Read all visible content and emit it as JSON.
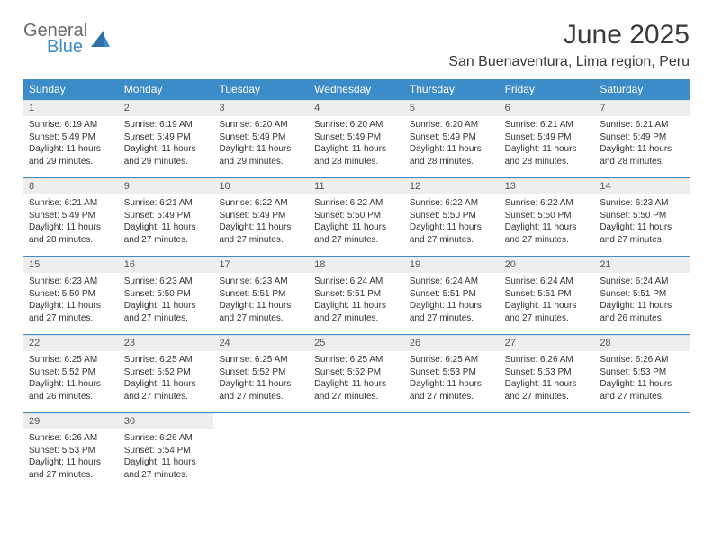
{
  "brand": {
    "part1": "General",
    "part2": "Blue"
  },
  "title": "June 2025",
  "location": "San Buenaventura, Lima region, Peru",
  "colors": {
    "header_bg": "#3c8cc9",
    "header_text": "#ffffff",
    "daynum_bg": "#eeeeee",
    "rule": "#3c8cc9",
    "text": "#333333"
  },
  "days_of_week": [
    "Sunday",
    "Monday",
    "Tuesday",
    "Wednesday",
    "Thursday",
    "Friday",
    "Saturday"
  ],
  "weeks": [
    [
      {
        "n": "1",
        "sr": "Sunrise: 6:19 AM",
        "ss": "Sunset: 5:49 PM",
        "d1": "Daylight: 11 hours",
        "d2": "and 29 minutes."
      },
      {
        "n": "2",
        "sr": "Sunrise: 6:19 AM",
        "ss": "Sunset: 5:49 PM",
        "d1": "Daylight: 11 hours",
        "d2": "and 29 minutes."
      },
      {
        "n": "3",
        "sr": "Sunrise: 6:20 AM",
        "ss": "Sunset: 5:49 PM",
        "d1": "Daylight: 11 hours",
        "d2": "and 29 minutes."
      },
      {
        "n": "4",
        "sr": "Sunrise: 6:20 AM",
        "ss": "Sunset: 5:49 PM",
        "d1": "Daylight: 11 hours",
        "d2": "and 28 minutes."
      },
      {
        "n": "5",
        "sr": "Sunrise: 6:20 AM",
        "ss": "Sunset: 5:49 PM",
        "d1": "Daylight: 11 hours",
        "d2": "and 28 minutes."
      },
      {
        "n": "6",
        "sr": "Sunrise: 6:21 AM",
        "ss": "Sunset: 5:49 PM",
        "d1": "Daylight: 11 hours",
        "d2": "and 28 minutes."
      },
      {
        "n": "7",
        "sr": "Sunrise: 6:21 AM",
        "ss": "Sunset: 5:49 PM",
        "d1": "Daylight: 11 hours",
        "d2": "and 28 minutes."
      }
    ],
    [
      {
        "n": "8",
        "sr": "Sunrise: 6:21 AM",
        "ss": "Sunset: 5:49 PM",
        "d1": "Daylight: 11 hours",
        "d2": "and 28 minutes."
      },
      {
        "n": "9",
        "sr": "Sunrise: 6:21 AM",
        "ss": "Sunset: 5:49 PM",
        "d1": "Daylight: 11 hours",
        "d2": "and 27 minutes."
      },
      {
        "n": "10",
        "sr": "Sunrise: 6:22 AM",
        "ss": "Sunset: 5:49 PM",
        "d1": "Daylight: 11 hours",
        "d2": "and 27 minutes."
      },
      {
        "n": "11",
        "sr": "Sunrise: 6:22 AM",
        "ss": "Sunset: 5:50 PM",
        "d1": "Daylight: 11 hours",
        "d2": "and 27 minutes."
      },
      {
        "n": "12",
        "sr": "Sunrise: 6:22 AM",
        "ss": "Sunset: 5:50 PM",
        "d1": "Daylight: 11 hours",
        "d2": "and 27 minutes."
      },
      {
        "n": "13",
        "sr": "Sunrise: 6:22 AM",
        "ss": "Sunset: 5:50 PM",
        "d1": "Daylight: 11 hours",
        "d2": "and 27 minutes."
      },
      {
        "n": "14",
        "sr": "Sunrise: 6:23 AM",
        "ss": "Sunset: 5:50 PM",
        "d1": "Daylight: 11 hours",
        "d2": "and 27 minutes."
      }
    ],
    [
      {
        "n": "15",
        "sr": "Sunrise: 6:23 AM",
        "ss": "Sunset: 5:50 PM",
        "d1": "Daylight: 11 hours",
        "d2": "and 27 minutes."
      },
      {
        "n": "16",
        "sr": "Sunrise: 6:23 AM",
        "ss": "Sunset: 5:50 PM",
        "d1": "Daylight: 11 hours",
        "d2": "and 27 minutes."
      },
      {
        "n": "17",
        "sr": "Sunrise: 6:23 AM",
        "ss": "Sunset: 5:51 PM",
        "d1": "Daylight: 11 hours",
        "d2": "and 27 minutes."
      },
      {
        "n": "18",
        "sr": "Sunrise: 6:24 AM",
        "ss": "Sunset: 5:51 PM",
        "d1": "Daylight: 11 hours",
        "d2": "and 27 minutes."
      },
      {
        "n": "19",
        "sr": "Sunrise: 6:24 AM",
        "ss": "Sunset: 5:51 PM",
        "d1": "Daylight: 11 hours",
        "d2": "and 27 minutes."
      },
      {
        "n": "20",
        "sr": "Sunrise: 6:24 AM",
        "ss": "Sunset: 5:51 PM",
        "d1": "Daylight: 11 hours",
        "d2": "and 27 minutes."
      },
      {
        "n": "21",
        "sr": "Sunrise: 6:24 AM",
        "ss": "Sunset: 5:51 PM",
        "d1": "Daylight: 11 hours",
        "d2": "and 26 minutes."
      }
    ],
    [
      {
        "n": "22",
        "sr": "Sunrise: 6:25 AM",
        "ss": "Sunset: 5:52 PM",
        "d1": "Daylight: 11 hours",
        "d2": "and 26 minutes."
      },
      {
        "n": "23",
        "sr": "Sunrise: 6:25 AM",
        "ss": "Sunset: 5:52 PM",
        "d1": "Daylight: 11 hours",
        "d2": "and 27 minutes."
      },
      {
        "n": "24",
        "sr": "Sunrise: 6:25 AM",
        "ss": "Sunset: 5:52 PM",
        "d1": "Daylight: 11 hours",
        "d2": "and 27 minutes."
      },
      {
        "n": "25",
        "sr": "Sunrise: 6:25 AM",
        "ss": "Sunset: 5:52 PM",
        "d1": "Daylight: 11 hours",
        "d2": "and 27 minutes."
      },
      {
        "n": "26",
        "sr": "Sunrise: 6:25 AM",
        "ss": "Sunset: 5:53 PM",
        "d1": "Daylight: 11 hours",
        "d2": "and 27 minutes."
      },
      {
        "n": "27",
        "sr": "Sunrise: 6:26 AM",
        "ss": "Sunset: 5:53 PM",
        "d1": "Daylight: 11 hours",
        "d2": "and 27 minutes."
      },
      {
        "n": "28",
        "sr": "Sunrise: 6:26 AM",
        "ss": "Sunset: 5:53 PM",
        "d1": "Daylight: 11 hours",
        "d2": "and 27 minutes."
      }
    ],
    [
      {
        "n": "29",
        "sr": "Sunrise: 6:26 AM",
        "ss": "Sunset: 5:53 PM",
        "d1": "Daylight: 11 hours",
        "d2": "and 27 minutes."
      },
      {
        "n": "30",
        "sr": "Sunrise: 6:26 AM",
        "ss": "Sunset: 5:54 PM",
        "d1": "Daylight: 11 hours",
        "d2": "and 27 minutes."
      },
      {
        "empty": true
      },
      {
        "empty": true
      },
      {
        "empty": true
      },
      {
        "empty": true
      },
      {
        "empty": true
      }
    ]
  ]
}
